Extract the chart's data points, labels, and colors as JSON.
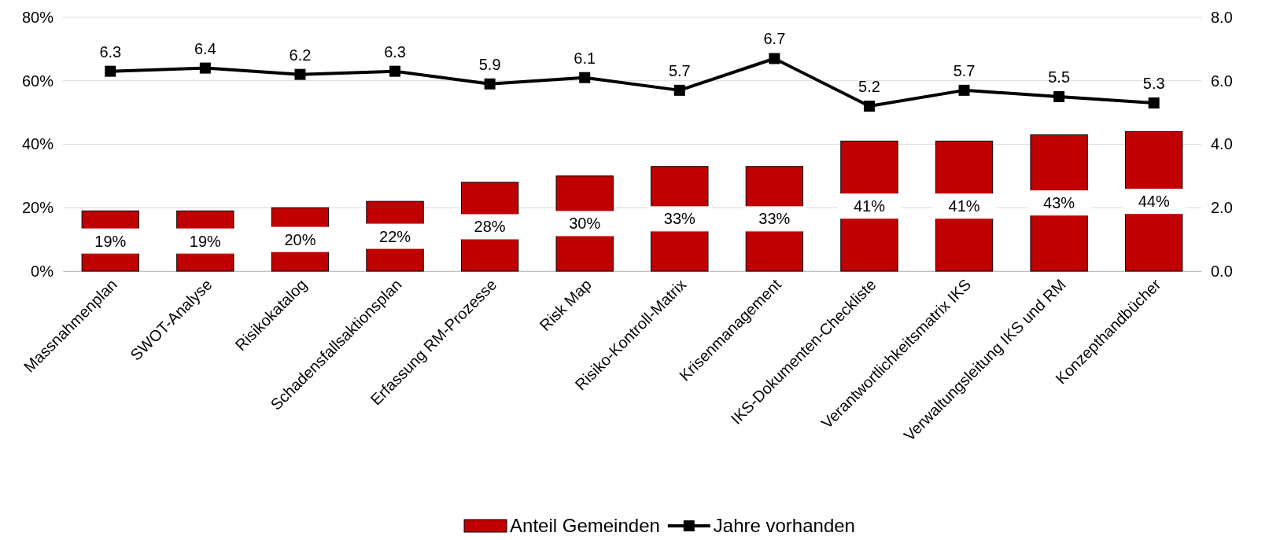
{
  "chart_data": {
    "type": "bar",
    "categories": [
      "Massnahmenplan",
      "SWOT-Analyse",
      "Risikokatalog",
      "Schadensfallsaktionsplan",
      "Erfassung RM-Prozesse",
      "Risk Map",
      "Risiko-Kontroll-Matrix",
      "Krisenmanagement",
      "IKS-Dokumenten-Checkliste",
      "Verantwortlichkeitsmatrix IKS",
      "Verwaltungsleitung IKS und RM",
      "Konzepthandbücher"
    ],
    "series": [
      {
        "name": "Anteil Gemeinden",
        "color": "#c00000",
        "values": [
          19,
          19,
          20,
          22,
          28,
          30,
          33,
          33,
          41,
          41,
          43,
          44
        ],
        "value_labels": [
          "19%",
          "19%",
          "20%",
          "22%",
          "28%",
          "30%",
          "33%",
          "33%",
          "41%",
          "41%",
          "43%",
          "44%"
        ]
      },
      {
        "name": "Jahre vorhanden",
        "type": "line",
        "axis": "y2",
        "color": "#000000",
        "values": [
          6.3,
          6.4,
          6.2,
          6.3,
          5.9,
          6.1,
          5.7,
          6.7,
          5.2,
          5.7,
          5.5,
          5.3
        ],
        "value_labels": [
          "6.3",
          "6.4",
          "6.2",
          "6.3",
          "5.9",
          "6.1",
          "5.7",
          "6.7",
          "5.2",
          "5.7",
          "5.5",
          "5.3"
        ]
      }
    ],
    "ylim": [
      0,
      80
    ],
    "yticks": [
      {
        "value": 0,
        "label": "0%"
      },
      {
        "value": 20,
        "label": "20%"
      },
      {
        "value": 40,
        "label": "40%"
      },
      {
        "value": 60,
        "label": "60%"
      },
      {
        "value": 80,
        "label": "80%"
      }
    ],
    "y2lim": [
      0,
      8
    ],
    "y2ticks": [
      {
        "value": 0,
        "label": "0.0"
      },
      {
        "value": 2,
        "label": "2.0"
      },
      {
        "value": 4,
        "label": "4.0"
      },
      {
        "value": 6,
        "label": "6.0"
      },
      {
        "value": 8,
        "label": "8.0"
      }
    ],
    "grid": "y",
    "legend": "bottom",
    "marker": "square",
    "line_style": "solid"
  }
}
